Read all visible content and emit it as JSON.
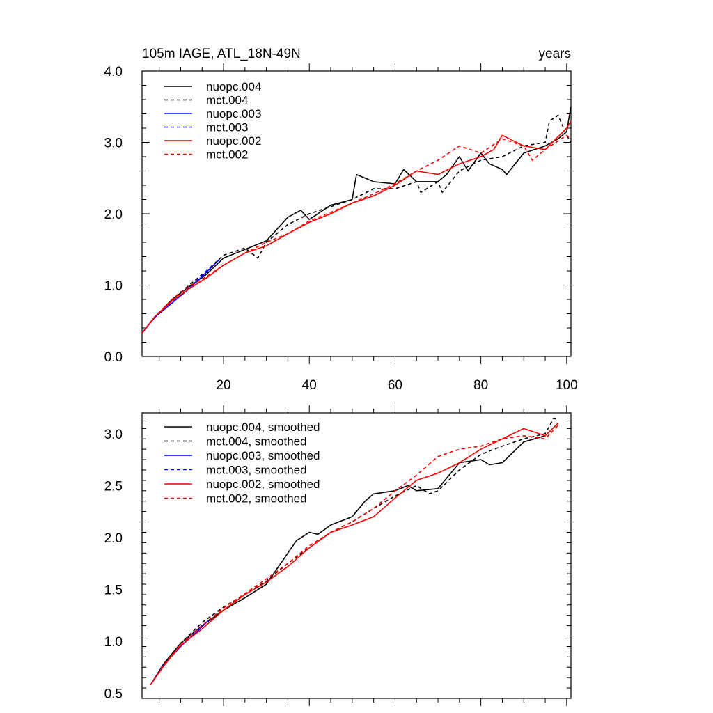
{
  "chart_data": [
    {
      "type": "line",
      "title": "105m IAGE, ATL_18N-49N",
      "units": "years",
      "xlim": [
        1,
        101
      ],
      "ylim": [
        0.0,
        4.0
      ],
      "xticks": [
        20,
        40,
        60,
        80,
        100
      ],
      "xtick_labels": [
        "20",
        "40",
        "60",
        "80",
        "100"
      ],
      "yticks": [
        0.0,
        1.0,
        2.0,
        3.0,
        4.0
      ],
      "ytick_labels": [
        "0.0",
        "1.0",
        "2.0",
        "3.0",
        "4.0"
      ],
      "legend_position": "top-left",
      "series": [
        {
          "name": "nuopc.004",
          "color": "#000000",
          "dash": "solid",
          "x": [
            1,
            4,
            8,
            12,
            16,
            20,
            25,
            30,
            35,
            38,
            40,
            45,
            50,
            51,
            55,
            60,
            62,
            65,
            70,
            72,
            75,
            77,
            80,
            82,
            85,
            86,
            90,
            95,
            98,
            100,
            101
          ],
          "y": [
            0.33,
            0.55,
            0.8,
            0.98,
            1.15,
            1.38,
            1.5,
            1.62,
            1.95,
            2.05,
            1.92,
            2.12,
            2.2,
            2.55,
            2.45,
            2.42,
            2.62,
            2.45,
            2.45,
            2.55,
            2.8,
            2.6,
            2.85,
            2.7,
            2.62,
            2.55,
            2.85,
            2.95,
            3.05,
            3.15,
            3.5
          ]
        },
        {
          "name": "mct.004",
          "color": "#000000",
          "dash": "dashed",
          "x": [
            1,
            4,
            8,
            12,
            16,
            20,
            25,
            28,
            30,
            35,
            40,
            45,
            50,
            55,
            60,
            65,
            66,
            70,
            71,
            75,
            80,
            85,
            90,
            95,
            96,
            98,
            100,
            101
          ],
          "y": [
            0.33,
            0.55,
            0.8,
            1.0,
            1.2,
            1.42,
            1.52,
            1.38,
            1.6,
            1.85,
            2.0,
            2.1,
            2.2,
            2.35,
            2.35,
            2.45,
            2.3,
            2.45,
            2.3,
            2.6,
            2.75,
            2.8,
            2.95,
            3.0,
            3.3,
            3.38,
            3.1,
            3.0
          ]
        },
        {
          "name": "nuopc.003",
          "color": "#0000ff",
          "dash": "solid",
          "x": [
            1,
            4,
            8,
            12,
            16,
            18,
            19
          ],
          "y": [
            0.33,
            0.55,
            0.75,
            0.95,
            1.18,
            1.3,
            1.36
          ]
        },
        {
          "name": "mct.003",
          "color": "#0000ff",
          "dash": "dashed",
          "x": [
            1,
            4,
            8,
            12,
            16,
            18
          ],
          "y": [
            0.33,
            0.55,
            0.76,
            0.96,
            1.2,
            1.3
          ]
        },
        {
          "name": "nuopc.002",
          "color": "#ff0000",
          "dash": "solid",
          "x": [
            1,
            4,
            8,
            12,
            16,
            20,
            25,
            30,
            35,
            40,
            45,
            50,
            55,
            60,
            65,
            70,
            75,
            80,
            83,
            85,
            90,
            95,
            100,
            101
          ],
          "y": [
            0.33,
            0.56,
            0.78,
            0.95,
            1.1,
            1.28,
            1.45,
            1.55,
            1.72,
            1.88,
            2.0,
            2.15,
            2.25,
            2.4,
            2.6,
            2.55,
            2.7,
            2.8,
            2.9,
            3.1,
            2.95,
            2.9,
            3.2,
            3.3
          ]
        },
        {
          "name": "mct.002",
          "color": "#ff0000",
          "dash": "dashed",
          "x": [
            1,
            4,
            8,
            12,
            16,
            20,
            25,
            30,
            35,
            40,
            45,
            50,
            55,
            60,
            65,
            70,
            75,
            80,
            85,
            90,
            92,
            95,
            100,
            101
          ],
          "y": [
            0.33,
            0.56,
            0.8,
            0.98,
            1.12,
            1.28,
            1.45,
            1.6,
            1.72,
            1.9,
            2.02,
            2.15,
            2.28,
            2.42,
            2.6,
            2.75,
            2.95,
            2.85,
            3.05,
            2.95,
            2.75,
            2.9,
            3.1,
            3.05
          ]
        }
      ]
    },
    {
      "type": "line",
      "xlim": [
        1,
        101
      ],
      "ylim": [
        0.45,
        3.2
      ],
      "yticks": [
        0.5,
        1.0,
        1.5,
        2.0,
        2.5,
        3.0
      ],
      "ytick_labels": [
        "0.5",
        "1.0",
        "1.5",
        "2.0",
        "2.5",
        "3.0"
      ],
      "legend_position": "top-left",
      "series": [
        {
          "name": "nuopc.004, smoothed",
          "color": "#000000",
          "dash": "solid",
          "x": [
            3,
            6,
            10,
            15,
            20,
            25,
            30,
            35,
            37,
            40,
            42,
            45,
            50,
            53,
            55,
            60,
            63,
            65,
            70,
            75,
            80,
            82,
            85,
            90,
            95,
            98
          ],
          "y": [
            0.58,
            0.78,
            0.98,
            1.15,
            1.3,
            1.42,
            1.55,
            1.85,
            1.97,
            2.05,
            2.03,
            2.12,
            2.2,
            2.35,
            2.42,
            2.45,
            2.5,
            2.45,
            2.47,
            2.72,
            2.75,
            2.7,
            2.72,
            2.92,
            2.98,
            3.1
          ]
        },
        {
          "name": "mct.004, smoothed",
          "color": "#000000",
          "dash": "dashed",
          "x": [
            3,
            6,
            10,
            15,
            20,
            25,
            30,
            35,
            40,
            45,
            50,
            55,
            60,
            65,
            68,
            70,
            75,
            80,
            85,
            90,
            95,
            97,
            98
          ],
          "y": [
            0.58,
            0.78,
            0.98,
            1.18,
            1.33,
            1.45,
            1.58,
            1.75,
            1.9,
            2.05,
            2.15,
            2.28,
            2.4,
            2.5,
            2.42,
            2.45,
            2.65,
            2.8,
            2.88,
            2.95,
            3.0,
            3.15,
            3.13
          ]
        },
        {
          "name": "nuopc.003, smoothed",
          "color": "#0000ff",
          "dash": "solid",
          "x": [
            3,
            6,
            10,
            14,
            17
          ],
          "y": [
            0.58,
            0.77,
            0.95,
            1.1,
            1.22
          ]
        },
        {
          "name": "mct.003, smoothed",
          "color": "#0000ff",
          "dash": "dashed",
          "x": [
            3,
            6,
            10,
            14,
            17
          ],
          "y": [
            0.58,
            0.77,
            0.96,
            1.12,
            1.22
          ]
        },
        {
          "name": "nuopc.002, smoothed",
          "color": "#ff0000",
          "dash": "solid",
          "x": [
            3,
            6,
            10,
            15,
            20,
            25,
            30,
            35,
            40,
            45,
            50,
            55,
            60,
            65,
            70,
            75,
            80,
            85,
            90,
            95,
            98
          ],
          "y": [
            0.58,
            0.76,
            0.96,
            1.12,
            1.3,
            1.45,
            1.57,
            1.72,
            1.9,
            2.05,
            2.12,
            2.2,
            2.38,
            2.55,
            2.62,
            2.72,
            2.85,
            2.95,
            3.05,
            2.98,
            3.1
          ]
        },
        {
          "name": "mct.002, smoothed",
          "color": "#ff0000",
          "dash": "dashed",
          "x": [
            3,
            6,
            10,
            15,
            20,
            25,
            30,
            35,
            40,
            45,
            50,
            55,
            60,
            65,
            70,
            75,
            80,
            85,
            90,
            95,
            98
          ],
          "y": [
            0.58,
            0.77,
            0.97,
            1.15,
            1.32,
            1.46,
            1.6,
            1.75,
            1.92,
            2.05,
            2.15,
            2.28,
            2.45,
            2.6,
            2.78,
            2.85,
            2.88,
            2.95,
            2.98,
            2.95,
            3.08
          ]
        }
      ]
    }
  ]
}
